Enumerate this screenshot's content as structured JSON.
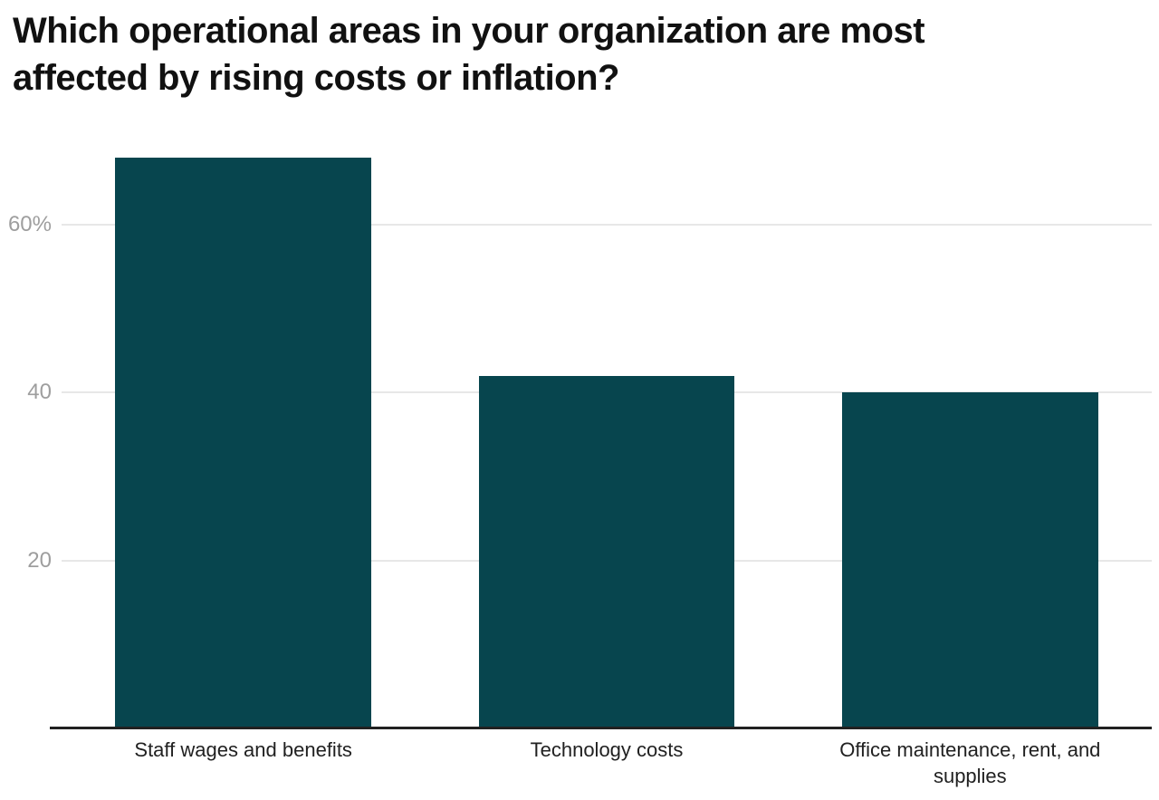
{
  "chart_data": {
    "type": "bar",
    "title": "Which operational areas in your organization are most affected by rising costs or inflation?",
    "categories": [
      "Staff wages and benefits",
      "Technology costs",
      "Office maintenance, rent, and supplies"
    ],
    "values": [
      68,
      42,
      40
    ],
    "value_unit": "%",
    "xlabel": "",
    "ylabel": "",
    "ylim": [
      0,
      70
    ],
    "yticks": [
      {
        "value": 20,
        "label": "20"
      },
      {
        "value": 40,
        "label": "40"
      },
      {
        "value": 60,
        "label": "60%"
      }
    ],
    "grid": true,
    "legend": false,
    "orientation": "vertical"
  },
  "colors": {
    "bar": "#07454e",
    "gridline": "#e7e7e7",
    "axis_line": "#212121",
    "tick_label": "#9e9e9e",
    "category_label": "#212121",
    "title": "#111111",
    "background": "#ffffff"
  }
}
